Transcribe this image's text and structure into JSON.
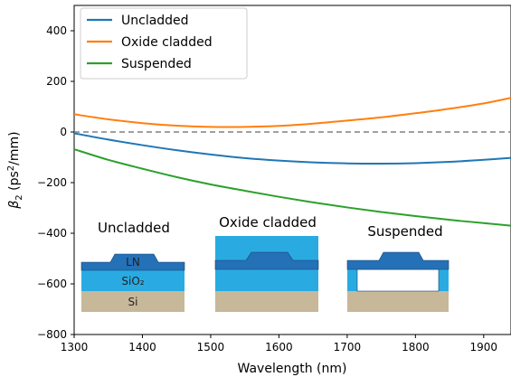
{
  "chart_data": {
    "type": "line",
    "xlabel": "Wavelength (nm)",
    "ylabel_main": "β",
    "ylabel_sub": "2",
    "ylabel_rest_open": " (ps",
    "ylabel_sup": "2",
    "ylabel_rest_close": "/mm)",
    "xlim": [
      1300,
      1940
    ],
    "ylim": [
      -800,
      500
    ],
    "xticks": [
      1300,
      1400,
      1500,
      1600,
      1700,
      1800,
      1900
    ],
    "yticks": [
      -800,
      -600,
      -400,
      -200,
      0,
      200,
      400
    ],
    "grid": false,
    "legend_position": "top-left",
    "zero_line": {
      "y": 0,
      "style": "dashed",
      "color": "#808080"
    },
    "series": [
      {
        "name": "Uncladded",
        "color": "#1f77b4",
        "x": [
          1300,
          1350,
          1400,
          1450,
          1500,
          1550,
          1600,
          1650,
          1700,
          1750,
          1800,
          1850,
          1900,
          1940
        ],
        "y": [
          -5,
          -30,
          -52,
          -72,
          -89,
          -103,
          -113,
          -120,
          -124,
          -125,
          -123,
          -118,
          -110,
          -102
        ]
      },
      {
        "name": "Oxide cladded",
        "color": "#ff7f0e",
        "x": [
          1300,
          1350,
          1400,
          1450,
          1500,
          1550,
          1600,
          1650,
          1700,
          1750,
          1800,
          1850,
          1900,
          1940
        ],
        "y": [
          70,
          50,
          35,
          25,
          20,
          20,
          24,
          33,
          45,
          58,
          74,
          92,
          113,
          135
        ]
      },
      {
        "name": "Suspended",
        "color": "#2ca02c",
        "x": [
          1300,
          1350,
          1400,
          1450,
          1500,
          1550,
          1600,
          1650,
          1700,
          1750,
          1800,
          1850,
          1900,
          1940
        ],
        "y": [
          -68,
          -110,
          -145,
          -178,
          -207,
          -232,
          -256,
          -278,
          -298,
          -316,
          -332,
          -347,
          -360,
          -370
        ]
      }
    ]
  },
  "insets": {
    "uncladded": {
      "title": "Uncladded",
      "layer_ln": "LN",
      "layer_sio2": "SiO₂",
      "layer_si": "Si"
    },
    "oxide": {
      "title": "Oxide cladded"
    },
    "suspended": {
      "title": "Suspended"
    }
  },
  "colors": {
    "ln": "#2471b8",
    "sio2": "#29abe2",
    "si": "#c7b89a",
    "white": "#ffffff"
  }
}
